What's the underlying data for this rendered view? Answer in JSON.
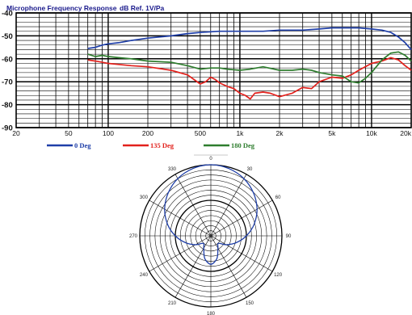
{
  "colors": {
    "series_0": "#1f3fa8",
    "series_135": "#e2211c",
    "series_180": "#2e7d2e"
  },
  "chart_data": [
    {
      "type": "line",
      "title": "Microphone Frequency Response",
      "subtitle": "dB Ref. 1V/Pa",
      "xscale": "log",
      "xlim": [
        20,
        20000
      ],
      "ylim": [
        -90,
        -40
      ],
      "grid": true,
      "legend": "bottom",
      "yticks": [
        -40,
        -50,
        -60,
        -70,
        -80,
        -90
      ],
      "ytick_labels": [
        "-40",
        "-50",
        "-60",
        "-70",
        "-80",
        "-90"
      ],
      "xticks": [
        20,
        50,
        100,
        200,
        500,
        1000,
        2000,
        5000,
        10000,
        20000
      ],
      "xtick_labels": [
        "20",
        "50",
        "100",
        "200",
        "500",
        "1k",
        "2k",
        "5k",
        "10k",
        "20k"
      ],
      "series": [
        {
          "name": "0 Deg",
          "x": [
            70,
            80,
            90,
            100,
            120,
            150,
            200,
            300,
            400,
            500,
            700,
            1000,
            1500,
            2000,
            3000,
            4000,
            5000,
            6000,
            7000,
            8000,
            10000,
            12000,
            14000,
            16000,
            18000,
            20000
          ],
          "y": [
            -55.5,
            -55,
            -54,
            -53.5,
            -53,
            -52,
            -51,
            -50,
            -49,
            -48.5,
            -48,
            -48,
            -48,
            -47.5,
            -47.5,
            -47,
            -46.5,
            -46.5,
            -46.5,
            -46.5,
            -47,
            -47.5,
            -48.5,
            -50.5,
            -53,
            -56
          ]
        },
        {
          "name": "135 Deg",
          "x": [
            70,
            80,
            90,
            100,
            150,
            200,
            300,
            400,
            500,
            550,
            600,
            650,
            700,
            800,
            900,
            1000,
            1100,
            1200,
            1300,
            1500,
            1700,
            2000,
            2500,
            3000,
            3500,
            4000,
            5000,
            6000,
            7000,
            8000,
            10000,
            12000,
            14000,
            16000,
            18000,
            20000
          ],
          "y": [
            -60.5,
            -61,
            -61.5,
            -62,
            -63,
            -63.5,
            -65,
            -67,
            -71,
            -70,
            -68,
            -69,
            -70.5,
            -72,
            -73,
            -75,
            -76,
            -77.5,
            -75,
            -74.5,
            -75,
            -76.5,
            -75,
            -72.5,
            -73,
            -70,
            -68,
            -68.5,
            -67,
            -65,
            -62,
            -61,
            -59.5,
            -60.5,
            -63,
            -65
          ]
        },
        {
          "name": "180 Deg",
          "x": [
            70,
            80,
            90,
            100,
            120,
            150,
            200,
            300,
            400,
            500,
            600,
            700,
            800,
            1000,
            1200,
            1500,
            2000,
            2500,
            3000,
            3500,
            4000,
            5000,
            6000,
            7000,
            8000,
            9000,
            10000,
            12000,
            14000,
            16000,
            18000,
            20000
          ],
          "y": [
            -58,
            -59,
            -58.5,
            -59,
            -59.5,
            -60,
            -61,
            -61.5,
            -63,
            -64.5,
            -64,
            -64,
            -64.5,
            -65,
            -64.5,
            -63.5,
            -65,
            -65,
            -64.5,
            -65,
            -66,
            -67,
            -67.5,
            -70,
            -70.5,
            -68.5,
            -66,
            -60.5,
            -57.5,
            -57,
            -58.5,
            -61
          ]
        }
      ]
    },
    {
      "type": "polar",
      "angle_labels": [
        "0",
        "30",
        "60",
        "90",
        "120",
        "150",
        "180",
        "210",
        "240",
        "270",
        "300",
        "330"
      ],
      "series": [
        {
          "name": "polar-response",
          "shape": "cardioid",
          "theta": [
            0,
            15,
            30,
            45,
            60,
            75,
            90,
            105,
            120,
            135,
            150,
            165,
            180,
            195,
            210,
            225,
            240,
            255,
            270,
            285,
            300,
            315,
            330,
            345
          ],
          "r": [
            1.0,
            0.98,
            0.93,
            0.85,
            0.75,
            0.63,
            0.5,
            0.37,
            0.25,
            0.15,
            0.2,
            0.33,
            0.4,
            0.33,
            0.2,
            0.15,
            0.25,
            0.37,
            0.5,
            0.63,
            0.75,
            0.85,
            0.93,
            0.98
          ]
        }
      ]
    }
  ],
  "legend": [
    "0 Deg",
    "135 Deg",
    "180 Deg"
  ]
}
